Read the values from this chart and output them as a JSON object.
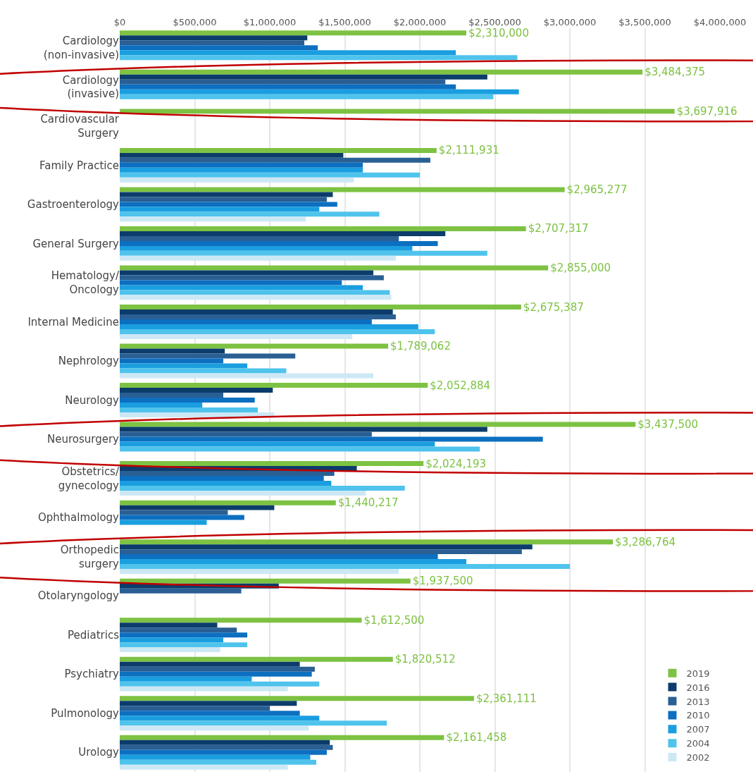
{
  "chart_data": {
    "type": "bar",
    "orientation": "horizontal",
    "categories": [
      "Cardiology\n(non-invasive)",
      "Cardiology\n(invasive)",
      "Cardiovascular\nSurgery",
      "Family Practice",
      "Gastroenterology",
      "General Surgery",
      "Hematology/\nOncology",
      "Internal Medicine",
      "Nephrology",
      "Neurology",
      "Neurosurgery",
      "Obstetrics/\ngynecology",
      "Ophthalmology",
      "Orthopedic\nsurgery",
      "Otolaryngology",
      "Pediatrics",
      "Psychiatry",
      "Pulmonology",
      "Urology"
    ],
    "series": [
      {
        "name": "2019",
        "color": "#7dc242",
        "values": [
          2310000,
          3484375,
          3697916,
          2111931,
          2965277,
          2707317,
          2855000,
          2675387,
          1789062,
          2052884,
          3437500,
          2024193,
          1440217,
          3286764,
          1937500,
          1612500,
          1820512,
          2361111,
          2161458
        ],
        "value_labels": [
          "$2,310,000",
          "$3,484,375",
          "$3,697,916",
          "$2,111,931",
          "$2,965,277",
          "$2,707,317",
          "$2,855,000",
          "$2,675,387",
          "$1,789,062",
          "$2,052,884",
          "$3,437,500",
          "$2,024,193",
          "$1,440,217",
          "$3,286,764",
          "$1,937,500",
          "$1,612,500",
          "$1,820,512",
          "$2,361,111",
          "$2,161,458"
        ]
      },
      {
        "name": "2016",
        "color": "#0b3c6b",
        "values": [
          1250000,
          2450000,
          null,
          1490000,
          1420000,
          2170000,
          1690000,
          1820000,
          700000,
          1020000,
          2450000,
          1580000,
          1030000,
          2750000,
          1060000,
          650000,
          1200000,
          1180000,
          1400000
        ]
      },
      {
        "name": "2013",
        "color": "#2a5f94",
        "values": [
          1230000,
          2170000,
          null,
          2070000,
          1380000,
          1860000,
          1760000,
          1840000,
          1170000,
          690000,
          1680000,
          1430000,
          720000,
          2680000,
          810000,
          780000,
          1300000,
          1000000,
          1420000
        ]
      },
      {
        "name": "2010",
        "color": "#0d6fc0",
        "values": [
          1320000,
          2240000,
          null,
          1620000,
          1450000,
          2120000,
          1480000,
          1680000,
          690000,
          900000,
          2820000,
          1360000,
          830000,
          2120000,
          null,
          850000,
          1280000,
          1200000,
          1380000
        ]
      },
      {
        "name": "2007",
        "color": "#1a9ee0",
        "values": [
          2240000,
          2660000,
          null,
          1620000,
          1330000,
          1950000,
          1620000,
          1990000,
          850000,
          550000,
          2100000,
          1410000,
          580000,
          2310000,
          null,
          690000,
          880000,
          1330000,
          1270000
        ]
      },
      {
        "name": "2004",
        "color": "#4fc3ec",
        "values": [
          2650000,
          2490000,
          null,
          2000000,
          1730000,
          2450000,
          1800000,
          2100000,
          1110000,
          920000,
          2400000,
          1900000,
          null,
          3000000,
          null,
          850000,
          1330000,
          1780000,
          1310000
        ]
      },
      {
        "name": "2002",
        "color": "#cde8f5",
        "values": [
          null,
          null,
          null,
          1560000,
          1240000,
          1840000,
          1810000,
          1550000,
          1690000,
          1030000,
          null,
          1640000,
          null,
          1860000,
          null,
          670000,
          1120000,
          1260000,
          1120000
        ]
      }
    ],
    "xlim": [
      0,
      4000000
    ],
    "xticks": [
      {
        "value": 0,
        "label": "$0"
      },
      {
        "value": 500000,
        "label": "$500,000"
      },
      {
        "value": 1000000,
        "label": "$1,000,000"
      },
      {
        "value": 1500000,
        "label": "$1,500,000"
      },
      {
        "value": 2000000,
        "label": "$2,000,000"
      },
      {
        "value": 2500000,
        "label": "$2,500,000"
      },
      {
        "value": 3000000,
        "label": "$3,000,000"
      },
      {
        "value": 3500000,
        "label": "$3,500,000"
      },
      {
        "value": 4000000,
        "label": "$4,000,000"
      }
    ],
    "grid": "x",
    "legend": "bottom right"
  }
}
